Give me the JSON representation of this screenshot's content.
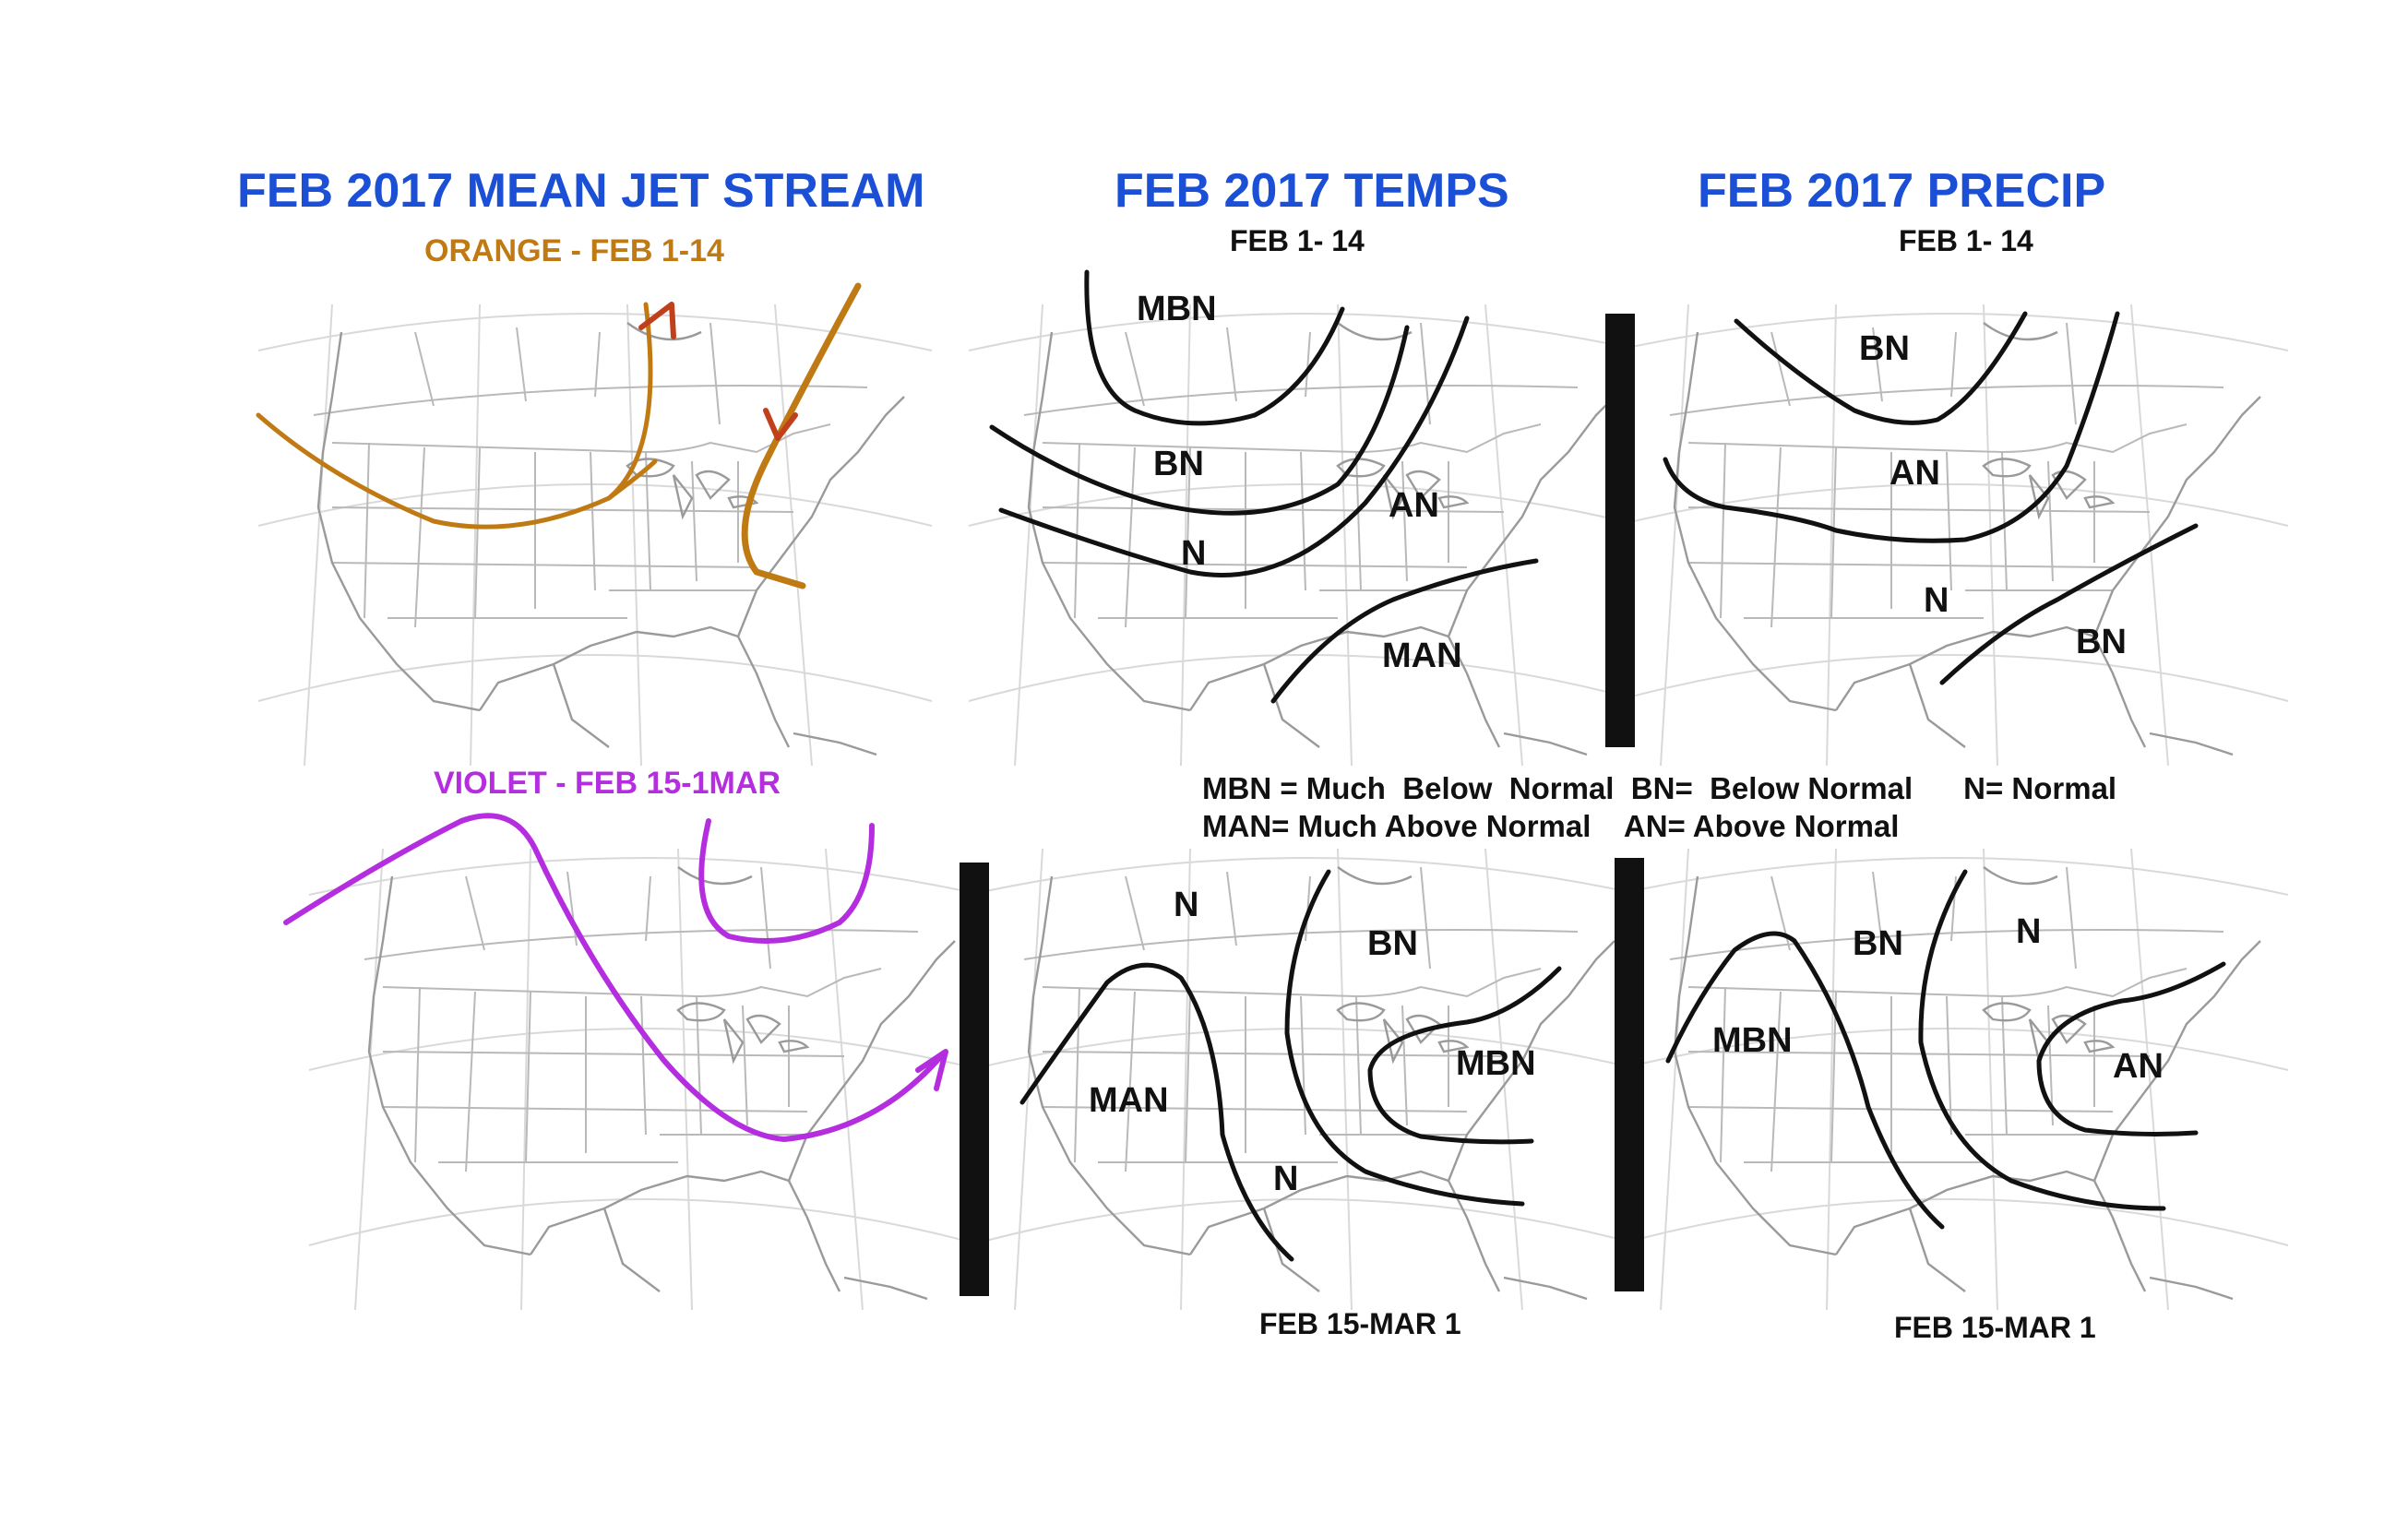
{
  "titles": {
    "jet": "FEB  2017  MEAN  JET STREAM",
    "temps": "FEB 2017  TEMPS",
    "precip": "FEB 2017  PRECIP"
  },
  "jet_stream": {
    "orange_label": "ORANGE -  FEB 1-14",
    "violet_label": "VIOLET - FEB 15-1MAR",
    "orange_color": "#c07a14",
    "violet_color": "#b42ee0",
    "arrow_color": "#c0401c"
  },
  "period_labels": {
    "temps_top": "FEB 1- 14",
    "precip_top": "FEB 1- 14",
    "temps_bottom": "FEB  15-MAR 1",
    "precip_bottom": "FEB 15-MAR 1"
  },
  "zones": {
    "temps_early": [
      "MBN",
      "BN",
      "N",
      "AN",
      "MAN"
    ],
    "precip_early": [
      "BN",
      "AN",
      "N",
      "BN"
    ],
    "temps_late": [
      "N",
      "BN",
      "MAN",
      "MBN",
      "N"
    ],
    "precip_late": [
      "BN",
      "N",
      "MBN",
      "AN"
    ]
  },
  "legend": {
    "line1": "MBN = Much  Below  Normal  BN=  Below Normal      N= Normal",
    "line2": "MAN= Much Above Normal    AN= Above Normal"
  },
  "colors": {
    "title_blue": "#1a4fd6"
  }
}
